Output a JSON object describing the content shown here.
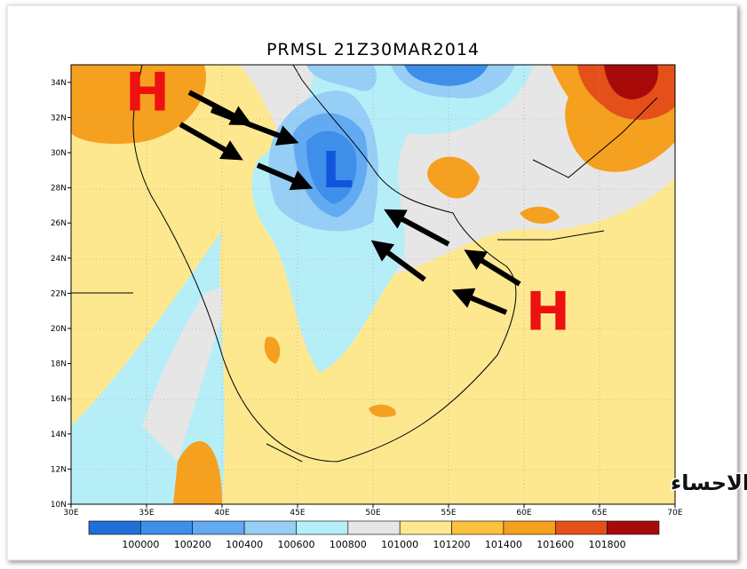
{
  "title": "PRMSL 21Z30MAR2014",
  "map": {
    "x_ticks": [
      "30E",
      "35E",
      "40E",
      "45E",
      "50E",
      "55E",
      "60E",
      "65E",
      "70E"
    ],
    "y_ticks": [
      "10N",
      "12N",
      "14N",
      "16N",
      "18N",
      "20N",
      "22N",
      "24N",
      "26N",
      "28N",
      "30N",
      "32N",
      "34N"
    ],
    "centers": [
      {
        "label": "H",
        "color": "#ee1111"
      },
      {
        "label": "L",
        "color": "#1155dd"
      },
      {
        "label": "H",
        "color": "#ee1111"
      }
    ],
    "watermark": "براري الاحساء"
  },
  "colorbar": {
    "colors": [
      "#1f6fd6",
      "#3d8fe9",
      "#62aaf2",
      "#96cef6",
      "#b6eef8",
      "#e6e6e6",
      "#fde890",
      "#fbc13f",
      "#f5a01e",
      "#e5501a",
      "#a80a0a"
    ],
    "labels": [
      "100000",
      "100200",
      "100400",
      "100600",
      "100800",
      "101000",
      "101200",
      "101400",
      "101600",
      "101800"
    ]
  }
}
